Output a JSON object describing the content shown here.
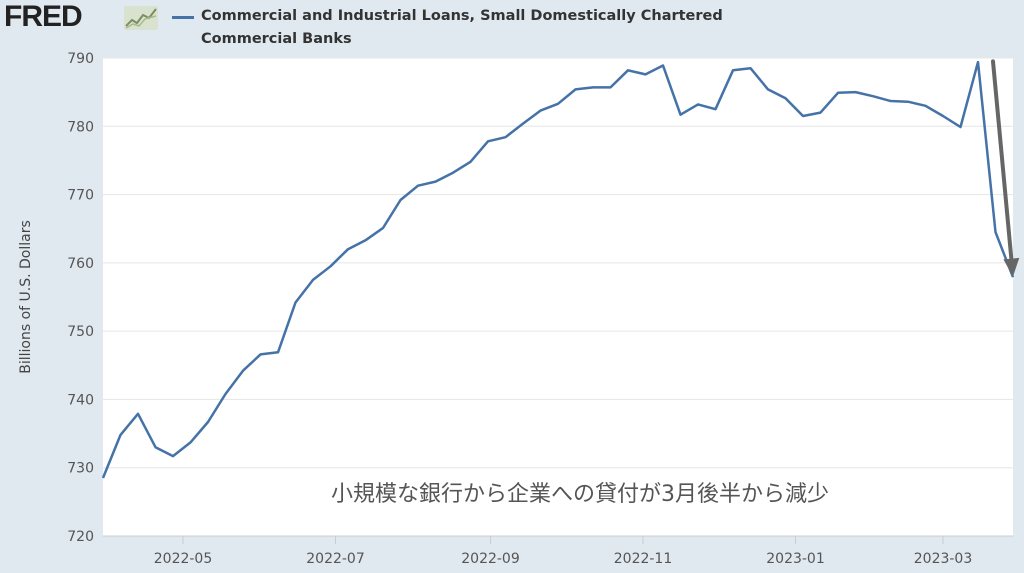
{
  "header": {
    "logo_text": "FRED",
    "legend_line1": "Commercial and Industrial Loans, Small Domestically Chartered",
    "legend_line2": "Commercial Banks"
  },
  "colors": {
    "series": "#4572a7",
    "background": "#e1e9f0",
    "plot_background": "#ffffff",
    "arrow": "#666666",
    "annotation": "#555555"
  },
  "chart_data": {
    "type": "line",
    "title": "",
    "ylabel": "Billions of U.S. Dollars",
    "xlabel": "",
    "ylim": [
      720,
      790
    ],
    "yticks": [
      720,
      730,
      740,
      750,
      760,
      770,
      780,
      790
    ],
    "grid": true,
    "x_tick_labels": [
      "2022-05",
      "2022-07",
      "2022-09",
      "2022-11",
      "2023-01",
      "2023-03"
    ],
    "x_ticks": [
      "2022-05-01",
      "2022-07-01",
      "2022-09-01",
      "2022-11-01",
      "2023-01-01",
      "2023-03-01"
    ],
    "x_range": [
      "2022-03-30",
      "2023-03-29"
    ],
    "annotation": "小規模な銀行から企業への貸付が3月後半から減少",
    "arrow": {
      "from": [
        "2023-03-21",
        789.5
      ],
      "to": [
        "2023-03-29",
        758.0
      ]
    },
    "series": [
      {
        "name": "Commercial and Industrial Loans, Small Domestically Chartered Commercial Banks",
        "x": [
          "2022-03-30",
          "2022-04-06",
          "2022-04-13",
          "2022-04-20",
          "2022-04-27",
          "2022-05-04",
          "2022-05-11",
          "2022-05-18",
          "2022-05-25",
          "2022-06-01",
          "2022-06-08",
          "2022-06-15",
          "2022-06-22",
          "2022-06-29",
          "2022-07-06",
          "2022-07-13",
          "2022-07-20",
          "2022-07-27",
          "2022-08-03",
          "2022-08-10",
          "2022-08-17",
          "2022-08-24",
          "2022-08-31",
          "2022-09-07",
          "2022-09-14",
          "2022-09-21",
          "2022-09-28",
          "2022-10-05",
          "2022-10-12",
          "2022-10-19",
          "2022-10-26",
          "2022-11-02",
          "2022-11-09",
          "2022-11-16",
          "2022-11-23",
          "2022-11-30",
          "2022-12-07",
          "2022-12-14",
          "2022-12-21",
          "2022-12-28",
          "2023-01-04",
          "2023-01-11",
          "2023-01-18",
          "2023-01-25",
          "2023-02-01",
          "2023-02-08",
          "2023-02-15",
          "2023-02-22",
          "2023-03-01",
          "2023-03-08",
          "2023-03-15",
          "2023-03-22",
          "2023-03-29"
        ],
        "values": [
          728.5,
          734.8,
          737.9,
          733.0,
          731.7,
          733.7,
          736.7,
          740.8,
          744.2,
          746.6,
          746.9,
          754.2,
          757.5,
          759.5,
          762.0,
          763.3,
          765.1,
          769.2,
          771.3,
          771.9,
          773.2,
          774.8,
          777.8,
          778.4,
          780.4,
          782.3,
          783.3,
          785.4,
          785.7,
          785.7,
          788.2,
          787.6,
          788.9,
          781.7,
          783.2,
          782.5,
          788.2,
          788.5,
          785.4,
          784.1,
          781.5,
          782.0,
          784.9,
          785.0,
          784.4,
          783.7,
          783.6,
          783.0,
          781.5,
          779.9,
          789.4,
          764.5,
          757.9
        ]
      }
    ]
  }
}
